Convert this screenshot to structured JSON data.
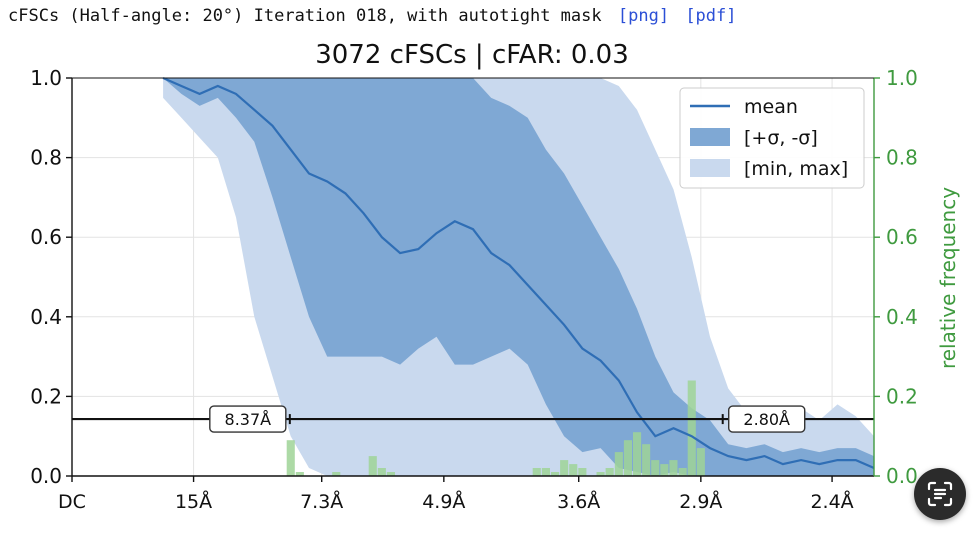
{
  "header": {
    "caption": "cFSCs (Half-angle: 20°) Iteration 018, with autotight mask",
    "links": [
      "[png]",
      "[pdf]"
    ]
  },
  "chart_data": {
    "type": "line",
    "title": "3072 cFSCs | cFAR: 0.03",
    "xlabel": "",
    "ylabel": "",
    "y2label": "relative frequency",
    "x_unit": "1/Å",
    "xlim": [
      0,
      0.44
    ],
    "ylim": [
      0,
      1.0
    ],
    "y2lim": [
      0,
      1.0
    ],
    "x_ticks": [
      {
        "label": "DC",
        "value": 0
      },
      {
        "label": "15Å",
        "value": 0.0667
      },
      {
        "label": "7.3Å",
        "value": 0.137
      },
      {
        "label": "4.9Å",
        "value": 0.204
      },
      {
        "label": "3.6Å",
        "value": 0.278
      },
      {
        "label": "2.9Å",
        "value": 0.345
      },
      {
        "label": "2.4Å",
        "value": 0.417
      }
    ],
    "y_ticks": [
      "0.0",
      "0.2",
      "0.4",
      "0.6",
      "0.8",
      "1.0"
    ],
    "y2_ticks": [
      "0.0",
      "0.2",
      "0.4",
      "0.6",
      "0.8",
      "1.0"
    ],
    "grid": true,
    "legend": {
      "position": "top-right",
      "entries": [
        "mean",
        "[+σ, -σ]",
        "[min, max]"
      ]
    },
    "threshold": 0.143,
    "annotations": [
      {
        "label": "8.37Å",
        "x": 0.1195
      },
      {
        "label": "2.80Å",
        "x": 0.357
      }
    ],
    "series": {
      "x": [
        0.05,
        0.06,
        0.07,
        0.08,
        0.09,
        0.1,
        0.11,
        0.12,
        0.13,
        0.14,
        0.15,
        0.16,
        0.17,
        0.18,
        0.19,
        0.2,
        0.21,
        0.22,
        0.23,
        0.24,
        0.25,
        0.26,
        0.27,
        0.28,
        0.29,
        0.3,
        0.31,
        0.32,
        0.33,
        0.34,
        0.35,
        0.36,
        0.37,
        0.38,
        0.39,
        0.4,
        0.41,
        0.42,
        0.43,
        0.44
      ],
      "mean": [
        1.0,
        0.98,
        0.96,
        0.98,
        0.96,
        0.92,
        0.88,
        0.82,
        0.76,
        0.74,
        0.71,
        0.66,
        0.6,
        0.56,
        0.57,
        0.61,
        0.64,
        0.62,
        0.56,
        0.53,
        0.48,
        0.43,
        0.38,
        0.32,
        0.29,
        0.24,
        0.16,
        0.1,
        0.12,
        0.1,
        0.07,
        0.05,
        0.04,
        0.05,
        0.03,
        0.04,
        0.03,
        0.04,
        0.04,
        0.02
      ],
      "std_upper": [
        1.0,
        1.0,
        1.0,
        1.0,
        1.0,
        1.0,
        1.0,
        1.0,
        1.0,
        1.0,
        1.0,
        1.0,
        1.0,
        1.0,
        1.0,
        1.0,
        1.0,
        1.0,
        0.95,
        0.93,
        0.9,
        0.82,
        0.76,
        0.68,
        0.6,
        0.52,
        0.42,
        0.3,
        0.21,
        0.17,
        0.14,
        0.08,
        0.07,
        0.08,
        0.06,
        0.07,
        0.06,
        0.07,
        0.07,
        0.05
      ],
      "std_lower": [
        1.0,
        0.96,
        0.93,
        0.95,
        0.9,
        0.84,
        0.7,
        0.55,
        0.4,
        0.3,
        0.3,
        0.3,
        0.3,
        0.28,
        0.32,
        0.35,
        0.28,
        0.28,
        0.3,
        0.32,
        0.28,
        0.18,
        0.1,
        0.06,
        0.07,
        0.02,
        0.01,
        0.0,
        0.01,
        0.0,
        0.0,
        0.0,
        0.0,
        0.0,
        0.0,
        0.0,
        0.0,
        0.0,
        0.0,
        0.0
      ],
      "max": [
        1.0,
        1.0,
        1.0,
        1.0,
        1.0,
        1.0,
        1.0,
        1.0,
        1.0,
        1.0,
        1.0,
        1.0,
        1.0,
        1.0,
        1.0,
        1.0,
        1.0,
        1.0,
        1.0,
        1.0,
        1.0,
        1.0,
        1.0,
        1.0,
        1.0,
        0.98,
        0.92,
        0.82,
        0.72,
        0.55,
        0.35,
        0.22,
        0.16,
        0.15,
        0.16,
        0.17,
        0.14,
        0.18,
        0.15,
        0.1
      ],
      "min": [
        0.95,
        0.9,
        0.85,
        0.8,
        0.65,
        0.4,
        0.25,
        0.1,
        0.02,
        0.0,
        0.0,
        0.0,
        0.0,
        0.0,
        0.0,
        0.0,
        0.0,
        0.0,
        0.0,
        0.0,
        0.0,
        0.0,
        0.0,
        0.0,
        0.0,
        0.0,
        0.0,
        0.0,
        0.0,
        0.0,
        0.0,
        0.0,
        0.0,
        0.0,
        0.0,
        0.0,
        0.0,
        0.0,
        0.0,
        0.0
      ]
    },
    "histogram": {
      "bin_width": 0.005,
      "bins": [
        {
          "x": 0.12,
          "v": 0.09
        },
        {
          "x": 0.125,
          "v": 0.01
        },
        {
          "x": 0.145,
          "v": 0.01
        },
        {
          "x": 0.165,
          "v": 0.05
        },
        {
          "x": 0.17,
          "v": 0.02
        },
        {
          "x": 0.175,
          "v": 0.01
        },
        {
          "x": 0.255,
          "v": 0.02
        },
        {
          "x": 0.26,
          "v": 0.02
        },
        {
          "x": 0.265,
          "v": 0.01
        },
        {
          "x": 0.27,
          "v": 0.04
        },
        {
          "x": 0.275,
          "v": 0.03
        },
        {
          "x": 0.28,
          "v": 0.02
        },
        {
          "x": 0.29,
          "v": 0.01
        },
        {
          "x": 0.295,
          "v": 0.02
        },
        {
          "x": 0.3,
          "v": 0.06
        },
        {
          "x": 0.305,
          "v": 0.09
        },
        {
          "x": 0.31,
          "v": 0.11
        },
        {
          "x": 0.315,
          "v": 0.08
        },
        {
          "x": 0.32,
          "v": 0.04
        },
        {
          "x": 0.325,
          "v": 0.03
        },
        {
          "x": 0.33,
          "v": 0.04
        },
        {
          "x": 0.335,
          "v": 0.02
        },
        {
          "x": 0.34,
          "v": 0.24
        },
        {
          "x": 0.345,
          "v": 0.07
        }
      ]
    },
    "colors": {
      "mean": "#2f6eb5",
      "std_band": "#7fa8d4",
      "minmax_band": "#c9d9ee",
      "histogram": "#9fd497",
      "right_axis": "#3f9a3f"
    }
  }
}
